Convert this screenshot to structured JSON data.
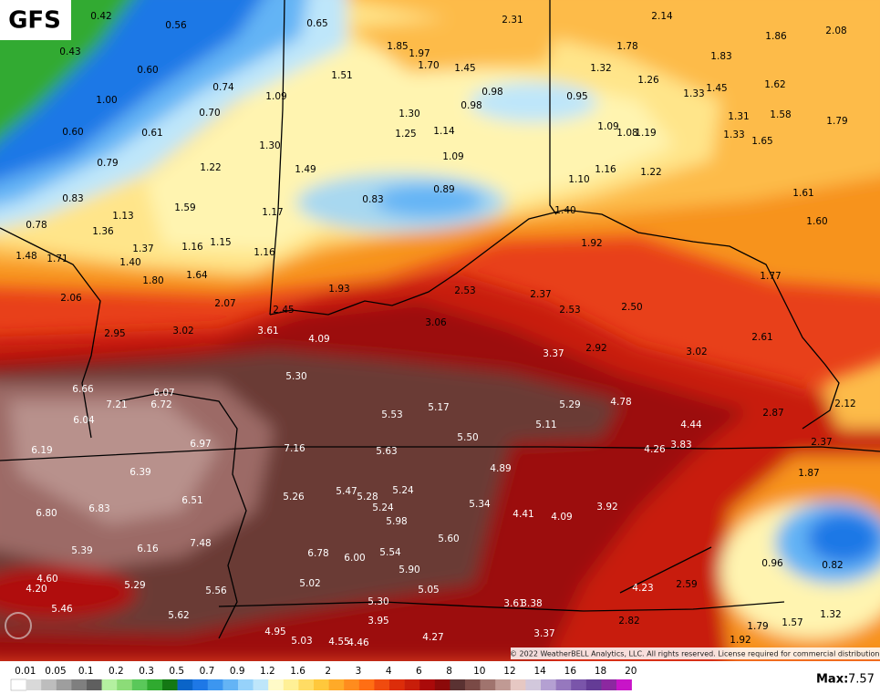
{
  "header": {
    "model": "GFS"
  },
  "map": {
    "labels": [
      "0.42",
      "0.56",
      "0.65",
      "2.31",
      "2.14",
      "1.86",
      "2.08",
      "0.43",
      "1.85",
      "1.97",
      "1.70",
      "1.45",
      "1.78",
      "1.83",
      "0.60",
      "1.51",
      "1.32",
      "1.26",
      "0.74",
      "0.98",
      "0.95",
      "1.33",
      "1.45",
      "1.62",
      "1.00",
      "1.09",
      "0.98",
      "0.70",
      "1.30",
      "1.31",
      "1.58",
      "1.79",
      "0.60",
      "0.61",
      "1.25",
      "1.14",
      "1.09",
      "1.08",
      "1.19",
      "1.33",
      "1.65",
      "1.30",
      "0.79",
      "1.22",
      "1.49",
      "1.09",
      "1.16",
      "1.22",
      "1.10",
      "0.83",
      "1.59",
      "0.83",
      "0.89",
      "1.61",
      "1.13",
      "1.17",
      "1.40",
      "1.60",
      "0.78",
      "1.36",
      "1.92",
      "1.37",
      "1.16",
      "1.15",
      "1.16",
      "1.48",
      "1.71",
      "1.40",
      "1.77",
      "1.64",
      "1.80",
      "1.93",
      "2.53",
      "2.37",
      "2.06",
      "2.07",
      "2.53",
      "2.50",
      "2.45",
      "3.06",
      "3.61",
      "2.95",
      "3.02",
      "4.09",
      "2.61",
      "3.37",
      "2.92",
      "3.02",
      "5.30",
      "6.66",
      "6.07",
      "6.72",
      "7.21",
      "5.29",
      "4.78",
      "2.12",
      "5.53",
      "5.17",
      "2.87",
      "6.04",
      "5.11",
      "4.44",
      "5.50",
      "6.97",
      "7.16",
      "5.63",
      "4.26",
      "3.83",
      "2.37",
      "6.19",
      "4.89",
      "6.39",
      "1.87",
      "5.24",
      "5.47",
      "5.28",
      "5.26",
      "6.51",
      "5.34",
      "6.83",
      "5.24",
      "3.92",
      "6.80",
      "4.41",
      "4.09",
      "5.98",
      "5.60",
      "7.48",
      "6.16",
      "5.39",
      "6.78",
      "6.00",
      "5.54",
      "0.96",
      "0.82",
      "5.90",
      "4.60",
      "5.29",
      "4.20",
      "5.02",
      "4.23",
      "2.59",
      "5.56",
      "5.05",
      "5.30",
      "3.61",
      "3.38",
      "5.46",
      "5.62",
      "1.32",
      "3.95",
      "2.82",
      "1.79",
      "1.57",
      "4.95",
      "3.37",
      "4.27",
      "5.03",
      "4.55",
      "4.46",
      "1.92"
    ]
  },
  "footer": {
    "copyright": "© 2022 WeatherBELL Analytics, LLC. All rights reserved. License required for commercial distribution.",
    "legend": {
      "ticks": [
        0.01,
        0.05,
        0.1,
        0.2,
        0.3,
        0.5,
        0.7,
        0.9,
        1.2,
        1.6,
        2,
        3,
        4,
        6,
        8,
        10,
        12,
        14,
        16,
        18,
        20
      ]
    },
    "max_label": "Max:",
    "max_value": 7.57
  }
}
